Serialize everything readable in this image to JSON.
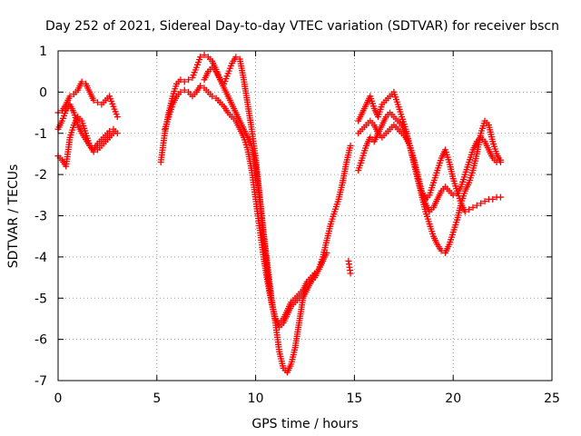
{
  "chart_data": {
    "type": "scatter",
    "title": "Day 252 of 2021, Sidereal Day-to-day VTEC variation (SDTVAR) for receiver bscn",
    "xlabel": "GPS time / hours",
    "ylabel": "SDTVAR / TECUs",
    "xlim": [
      0,
      25
    ],
    "ylim": [
      -7,
      1
    ],
    "x_ticks": [
      0,
      5,
      10,
      15,
      20,
      25
    ],
    "y_ticks": [
      -7,
      -6,
      -5,
      -4,
      -3,
      -2,
      -1,
      0,
      1
    ],
    "grid": true,
    "marker": "+",
    "series": [
      {
        "color": "#ff0000",
        "segments": [
          {
            "x": [
              0.0,
              0.2,
              0.4,
              0.6,
              0.8,
              1.0,
              1.2,
              1.4,
              1.6,
              1.8,
              2.0,
              2.2,
              2.4,
              2.6,
              2.8,
              3.0
            ],
            "y": [
              -0.5,
              -0.45,
              -0.3,
              -0.1,
              -0.05,
              0.05,
              0.25,
              0.2,
              0.0,
              -0.2,
              -0.25,
              -0.3,
              -0.2,
              -0.1,
              -0.35,
              -0.6
            ]
          },
          {
            "x": [
              0.0,
              0.2,
              0.4,
              0.6,
              0.8,
              1.0,
              1.2,
              1.4,
              1.6,
              1.8,
              2.0,
              2.2,
              2.4,
              2.6,
              2.8,
              3.0
            ],
            "y": [
              -0.9,
              -0.7,
              -0.45,
              -0.3,
              -0.5,
              -0.8,
              -1.0,
              -1.15,
              -1.3,
              -1.4,
              -1.25,
              -1.15,
              -1.05,
              -0.95,
              -0.9,
              -1.0
            ]
          },
          {
            "x": [
              0.0,
              0.2,
              0.4,
              0.6,
              0.8,
              1.0,
              1.2,
              1.4,
              1.6,
              1.8,
              2.0,
              2.2,
              2.4,
              2.6,
              2.8
            ],
            "y": [
              -1.55,
              -1.65,
              -1.8,
              -1.1,
              -0.8,
              -0.6,
              -0.7,
              -1.0,
              -1.3,
              -1.45,
              -1.4,
              -1.3,
              -1.2,
              -1.1,
              -1.0
            ]
          },
          {
            "x": [
              5.2,
              5.4,
              5.6,
              5.8,
              6.0,
              6.2,
              6.4,
              6.6,
              6.8,
              7.0,
              7.2,
              7.4,
              7.6,
              7.8,
              8.0,
              8.2,
              8.4,
              8.6,
              8.8,
              9.0,
              9.2,
              9.4,
              9.6,
              9.8,
              10.0,
              10.2,
              10.4,
              10.6,
              10.8,
              11.0,
              11.2,
              11.4,
              11.6,
              11.8,
              12.0,
              12.2,
              12.4,
              12.6,
              12.8,
              13.0,
              13.2,
              13.4,
              13.6,
              13.8,
              14.0,
              14.2,
              14.4,
              14.6,
              14.8
            ],
            "y": [
              -1.7,
              -1.0,
              -0.5,
              -0.1,
              0.2,
              0.3,
              0.25,
              0.3,
              0.35,
              0.6,
              0.85,
              0.9,
              0.85,
              0.75,
              0.55,
              0.3,
              0.2,
              0.45,
              0.7,
              0.85,
              0.8,
              0.3,
              -0.3,
              -0.9,
              -1.6,
              -2.5,
              -3.4,
              -4.2,
              -5.0,
              -5.6,
              -6.3,
              -6.7,
              -6.8,
              -6.6,
              -6.2,
              -5.6,
              -5.0,
              -4.8,
              -4.6,
              -4.5,
              -4.3,
              -4.0,
              -3.6,
              -3.2,
              -2.9,
              -2.6,
              -2.2,
              -1.7,
              -1.3
            ]
          },
          {
            "x": [
              5.4,
              5.6,
              5.8,
              6.0,
              6.2,
              6.4,
              6.6,
              6.8,
              7.0,
              7.2,
              7.4,
              7.6,
              7.8,
              8.0,
              8.2,
              8.4,
              8.6,
              8.8,
              9.0,
              9.2,
              9.4,
              9.6,
              9.8,
              10.0,
              10.2,
              10.4,
              10.6,
              10.8,
              11.0,
              11.2,
              11.4,
              11.6,
              11.8,
              12.0,
              12.2,
              12.4,
              12.6,
              12.8,
              13.0,
              13.2,
              13.4,
              13.6
            ],
            "y": [
              -0.9,
              -0.6,
              -0.3,
              -0.1,
              0.0,
              0.05,
              0.0,
              -0.1,
              0.0,
              0.15,
              0.1,
              0.0,
              -0.1,
              -0.15,
              -0.25,
              -0.35,
              -0.5,
              -0.6,
              -0.7,
              -0.9,
              -1.1,
              -1.4,
              -1.9,
              -2.6,
              -3.3,
              -4.0,
              -4.6,
              -5.1,
              -5.5,
              -5.7,
              -5.6,
              -5.4,
              -5.2,
              -5.1,
              -5.0,
              -4.9,
              -4.7,
              -4.6,
              -4.4,
              -4.3,
              -4.1,
              -3.9
            ]
          },
          {
            "x": [
              7.4,
              7.6,
              7.8,
              8.0,
              8.2,
              8.4,
              8.6,
              8.8,
              9.0,
              9.2,
              9.4,
              9.6,
              9.8,
              10.0,
              10.2,
              10.4,
              10.6,
              10.8,
              11.0,
              11.2,
              11.4,
              11.6,
              11.8,
              12.0,
              12.2,
              12.4,
              12.6,
              12.8,
              13.0
            ],
            "y": [
              0.3,
              0.5,
              0.6,
              0.5,
              0.3,
              0.1,
              -0.1,
              -0.3,
              -0.5,
              -0.7,
              -0.9,
              -1.1,
              -1.3,
              -1.8,
              -2.6,
              -3.5,
              -4.4,
              -5.1,
              -5.5,
              -5.6,
              -5.5,
              -5.3,
              -5.1,
              -5.0,
              -4.9,
              -4.8,
              -4.6,
              -4.5,
              -4.4
            ]
          },
          {
            "x": [
              14.7,
              14.75,
              14.8
            ],
            "y": [
              -4.1,
              -4.25,
              -4.4
            ]
          },
          {
            "x": [
              15.2,
              15.4,
              15.6,
              15.8,
              16.0,
              16.2,
              16.4,
              16.6,
              16.8,
              17.0,
              17.2,
              17.4,
              17.6,
              17.8,
              18.0,
              18.2,
              18.4,
              18.6,
              18.8,
              19.0,
              19.2,
              19.4,
              19.6,
              19.8,
              20.0,
              20.2,
              20.4,
              20.6,
              20.8,
              21.0,
              21.2,
              21.4,
              21.6,
              21.8,
              22.0,
              22.2,
              22.4
            ],
            "y": [
              -0.7,
              -0.5,
              -0.3,
              -0.1,
              -0.4,
              -0.6,
              -0.3,
              -0.2,
              -0.1,
              0.0,
              -0.3,
              -0.6,
              -0.9,
              -1.3,
              -1.7,
              -2.1,
              -2.5,
              -2.9,
              -3.2,
              -3.5,
              -3.7,
              -3.85,
              -3.9,
              -3.7,
              -3.4,
              -3.1,
              -2.7,
              -2.4,
              -2.2,
              -1.9,
              -1.5,
              -1.0,
              -0.7,
              -0.8,
              -1.2,
              -1.5,
              -1.7
            ]
          },
          {
            "x": [
              15.2,
              15.4,
              15.6,
              15.8,
              16.0,
              16.2,
              16.4,
              16.6,
              16.8,
              17.0,
              17.2,
              17.4,
              17.6,
              17.8,
              18.0,
              18.2,
              18.4,
              18.6,
              18.8,
              19.0,
              19.2,
              19.4,
              19.6,
              19.8,
              20.0,
              20.2,
              20.4,
              20.6,
              20.8,
              21.0,
              21.2,
              21.4,
              21.6,
              21.8,
              22.0,
              22.2,
              22.4
            ],
            "y": [
              -1.0,
              -0.9,
              -0.8,
              -0.7,
              -0.8,
              -1.0,
              -1.1,
              -1.0,
              -0.9,
              -0.8,
              -0.9,
              -1.0,
              -1.1,
              -1.3,
              -1.6,
              -2.0,
              -2.4,
              -2.7,
              -2.9,
              -2.8,
              -2.6,
              -2.4,
              -2.3,
              -2.4,
              -2.5,
              -2.45,
              -2.3,
              -2.0,
              -1.7,
              -1.4,
              -1.2,
              -1.1,
              -1.2,
              -1.4,
              -1.6,
              -1.7,
              -1.65
            ]
          },
          {
            "x": [
              15.2,
              15.4,
              15.6,
              15.8,
              16.0,
              16.2,
              16.4,
              16.6,
              16.8,
              17.0,
              17.2,
              17.4,
              17.6,
              17.8,
              18.0,
              18.2,
              18.4,
              18.6,
              18.8,
              19.0,
              19.2,
              19.4,
              19.6,
              19.8,
              20.0,
              20.2,
              20.4,
              20.6,
              20.8,
              21.0,
              21.2,
              21.4,
              21.6,
              21.8,
              22.0,
              22.2,
              22.4
            ],
            "y": [
              -1.9,
              -1.6,
              -1.3,
              -1.1,
              -1.2,
              -1.0,
              -0.8,
              -0.6,
              -0.5,
              -0.6,
              -0.7,
              -0.8,
              -1.0,
              -1.3,
              -1.7,
              -2.1,
              -2.4,
              -2.6,
              -2.5,
              -2.2,
              -1.9,
              -1.6,
              -1.4,
              -1.7,
              -2.1,
              -2.4,
              -2.7,
              -2.9,
              -2.85,
              -2.8,
              -2.75,
              -2.7,
              -2.65,
              -2.6,
              -2.6,
              -2.55,
              -2.55
            ]
          }
        ]
      }
    ]
  }
}
